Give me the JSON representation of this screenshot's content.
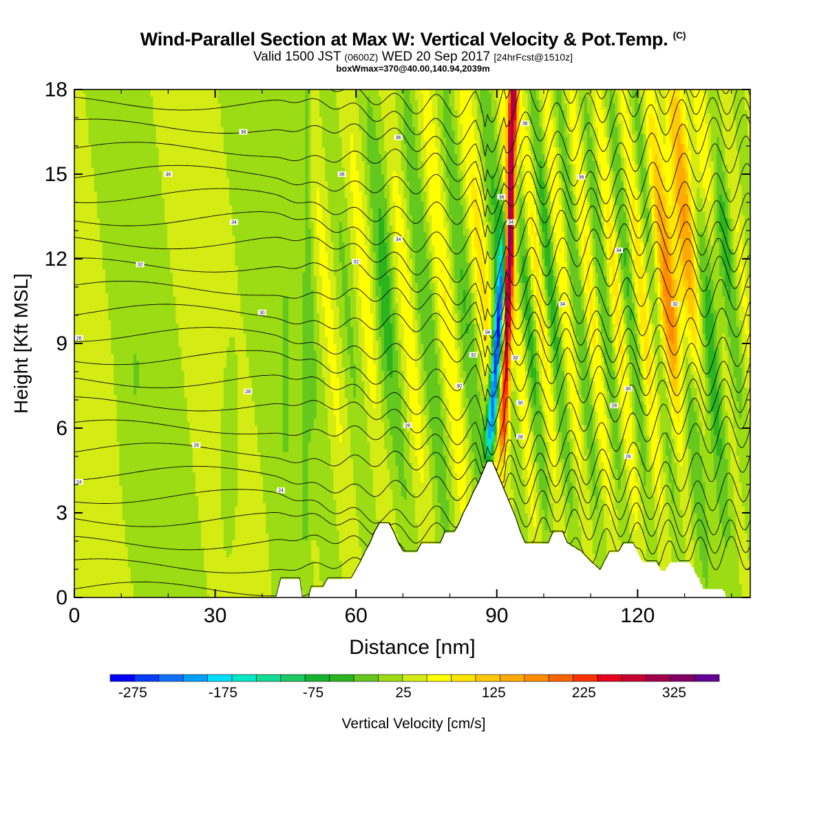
{
  "header": {
    "title": "Wind-Parallel Section at Max W: Vertical Velocity & Pot.Temp.",
    "copyright": "(C)",
    "valid_prefix": "Valid 1500 JST",
    "valid_zulu": "(0600Z)",
    "valid_date": "WED 20 Sep 2017",
    "forecast": "[24hrFcst@1510z]",
    "box_info": "boxWmax=370@40.00,140.94,2039m"
  },
  "chart_data": {
    "type": "heatmap",
    "xlabel": "Distance [nm]",
    "ylabel": "Height [Kft MSL]",
    "xlim": [
      0,
      144
    ],
    "ylim": [
      0,
      18
    ],
    "x_ticks": [
      0,
      30,
      60,
      90,
      120
    ],
    "y_ticks": [
      0,
      3,
      6,
      9,
      12,
      15,
      18
    ],
    "colorbar": {
      "label": "Vertical Velocity [cm/s]",
      "min": -300,
      "max": 375,
      "step": 25,
      "tick_values": [
        -275,
        -175,
        -75,
        25,
        125,
        225,
        325
      ],
      "colors": [
        "#0000ff",
        "#0a3cff",
        "#1470ff",
        "#00a0ff",
        "#00e0ff",
        "#00e8c8",
        "#14dc96",
        "#1cc864",
        "#14b432",
        "#2cb41e",
        "#64c81e",
        "#9cdc14",
        "#d4ec14",
        "#ffff00",
        "#ffe600",
        "#ffc800",
        "#ffaa00",
        "#ff8c00",
        "#ff6400",
        "#ff3200",
        "#e6001e",
        "#c80032",
        "#a0004b",
        "#820064",
        "#640096"
      ]
    },
    "terrain_profile_kft": [
      [
        0,
        0
      ],
      [
        10,
        0
      ],
      [
        20,
        0
      ],
      [
        30,
        0
      ],
      [
        40,
        0
      ],
      [
        43,
        0
      ],
      [
        44,
        0.65
      ],
      [
        48,
        0.65
      ],
      [
        48.5,
        0
      ],
      [
        50,
        0
      ],
      [
        50.5,
        0.35
      ],
      [
        53,
        0.35
      ],
      [
        54,
        0.65
      ],
      [
        59,
        0.65
      ],
      [
        60,
        0.95
      ],
      [
        61,
        1.25
      ],
      [
        62,
        1.6
      ],
      [
        63,
        1.9
      ],
      [
        64,
        2.3
      ],
      [
        65,
        2.6
      ],
      [
        67,
        2.6
      ],
      [
        68,
        2.3
      ],
      [
        69,
        1.9
      ],
      [
        70,
        1.6
      ],
      [
        73,
        1.6
      ],
      [
        74,
        1.9
      ],
      [
        78,
        1.9
      ],
      [
        79,
        2.3
      ],
      [
        81,
        2.3
      ],
      [
        82,
        2.6
      ],
      [
        83,
        3.0
      ],
      [
        84,
        3.3
      ],
      [
        85,
        3.7
      ],
      [
        86,
        4.0
      ],
      [
        87,
        4.4
      ],
      [
        88,
        4.8
      ],
      [
        89,
        4.8
      ],
      [
        90,
        4.4
      ],
      [
        91,
        4.0
      ],
      [
        92,
        3.6
      ],
      [
        93,
        3.2
      ],
      [
        94,
        2.8
      ],
      [
        95,
        2.3
      ],
      [
        96,
        1.9
      ],
      [
        101,
        1.9
      ],
      [
        102,
        2.3
      ],
      [
        104,
        2.3
      ],
      [
        105,
        1.9
      ],
      [
        108,
        1.6
      ],
      [
        110,
        1.25
      ],
      [
        112,
        0.95
      ],
      [
        113,
        1.25
      ],
      [
        114,
        1.6
      ],
      [
        116,
        1.6
      ],
      [
        117,
        1.9
      ],
      [
        119,
        1.9
      ],
      [
        120,
        1.6
      ],
      [
        121,
        1.25
      ],
      [
        124,
        1.25
      ],
      [
        125,
        0.95
      ],
      [
        126,
        0.95
      ],
      [
        127,
        1.25
      ],
      [
        131,
        1.25
      ],
      [
        132,
        0.95
      ],
      [
        133,
        0.65
      ],
      [
        134,
        0.3
      ],
      [
        138,
        0.3
      ],
      [
        139,
        0
      ],
      [
        144,
        0
      ]
    ],
    "contour_labels": [
      {
        "x": 36,
        "y": 16.5,
        "text": "36"
      },
      {
        "x": 20,
        "y": 15.0,
        "text": "36"
      },
      {
        "x": 57,
        "y": 15.0,
        "text": "36"
      },
      {
        "x": 69,
        "y": 16.3,
        "text": "36"
      },
      {
        "x": 34,
        "y": 13.3,
        "text": "34"
      },
      {
        "x": 14,
        "y": 11.8,
        "text": "32"
      },
      {
        "x": 60,
        "y": 11.9,
        "text": "32"
      },
      {
        "x": 69,
        "y": 12.7,
        "text": "34"
      },
      {
        "x": 40,
        "y": 10.1,
        "text": "30"
      },
      {
        "x": 1,
        "y": 9.2,
        "text": "26"
      },
      {
        "x": 37,
        "y": 7.3,
        "text": "28"
      },
      {
        "x": 26,
        "y": 5.4,
        "text": "26"
      },
      {
        "x": 1,
        "y": 4.1,
        "text": "24"
      },
      {
        "x": 44,
        "y": 3.8,
        "text": "24"
      },
      {
        "x": 71,
        "y": 6.1,
        "text": "28"
      },
      {
        "x": 82,
        "y": 7.5,
        "text": "30"
      },
      {
        "x": 85,
        "y": 8.6,
        "text": "32"
      },
      {
        "x": 88,
        "y": 9.4,
        "text": "34"
      },
      {
        "x": 91,
        "y": 14.2,
        "text": "36"
      },
      {
        "x": 93,
        "y": 13.3,
        "text": "34"
      },
      {
        "x": 96,
        "y": 16.8,
        "text": "38"
      },
      {
        "x": 94,
        "y": 8.5,
        "text": "32"
      },
      {
        "x": 95,
        "y": 6.9,
        "text": "30"
      },
      {
        "x": 95,
        "y": 5.7,
        "text": "28"
      },
      {
        "x": 108,
        "y": 14.9,
        "text": "36"
      },
      {
        "x": 104,
        "y": 10.4,
        "text": "34"
      },
      {
        "x": 116,
        "y": 12.3,
        "text": "34"
      },
      {
        "x": 128,
        "y": 10.4,
        "text": "32"
      },
      {
        "x": 118,
        "y": 7.4,
        "text": "30"
      },
      {
        "x": 115,
        "y": 6.8,
        "text": "28"
      },
      {
        "x": 118,
        "y": 5.0,
        "text": "26"
      }
    ]
  }
}
